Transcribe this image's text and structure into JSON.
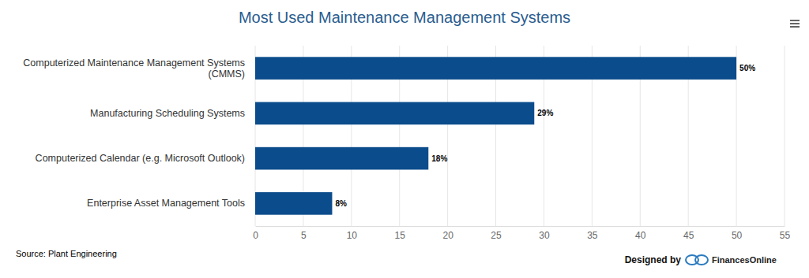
{
  "chart_data": {
    "type": "bar",
    "orientation": "horizontal",
    "title": "Most Used Maintenance Management Systems",
    "categories": [
      "Computerized Maintenance Management Systems (CMMS)",
      "Manufacturing Scheduling Systems",
      "Computerized Calendar (e.g. Microsoft Outlook)",
      "Enterprise Asset Management Tools"
    ],
    "values": [
      50,
      29,
      18,
      8
    ],
    "value_labels": [
      "50%",
      "29%",
      "18%",
      "8%"
    ],
    "data_labels": true,
    "color": "#0b4c8c",
    "xlim": [
      0,
      55
    ],
    "xticks": [
      0,
      5,
      10,
      15,
      20,
      25,
      30,
      35,
      40,
      45,
      50,
      55
    ],
    "grid": true,
    "source": "Source: Plant Engineering",
    "credit": "Designed by",
    "brand": "FinancesOnline"
  }
}
